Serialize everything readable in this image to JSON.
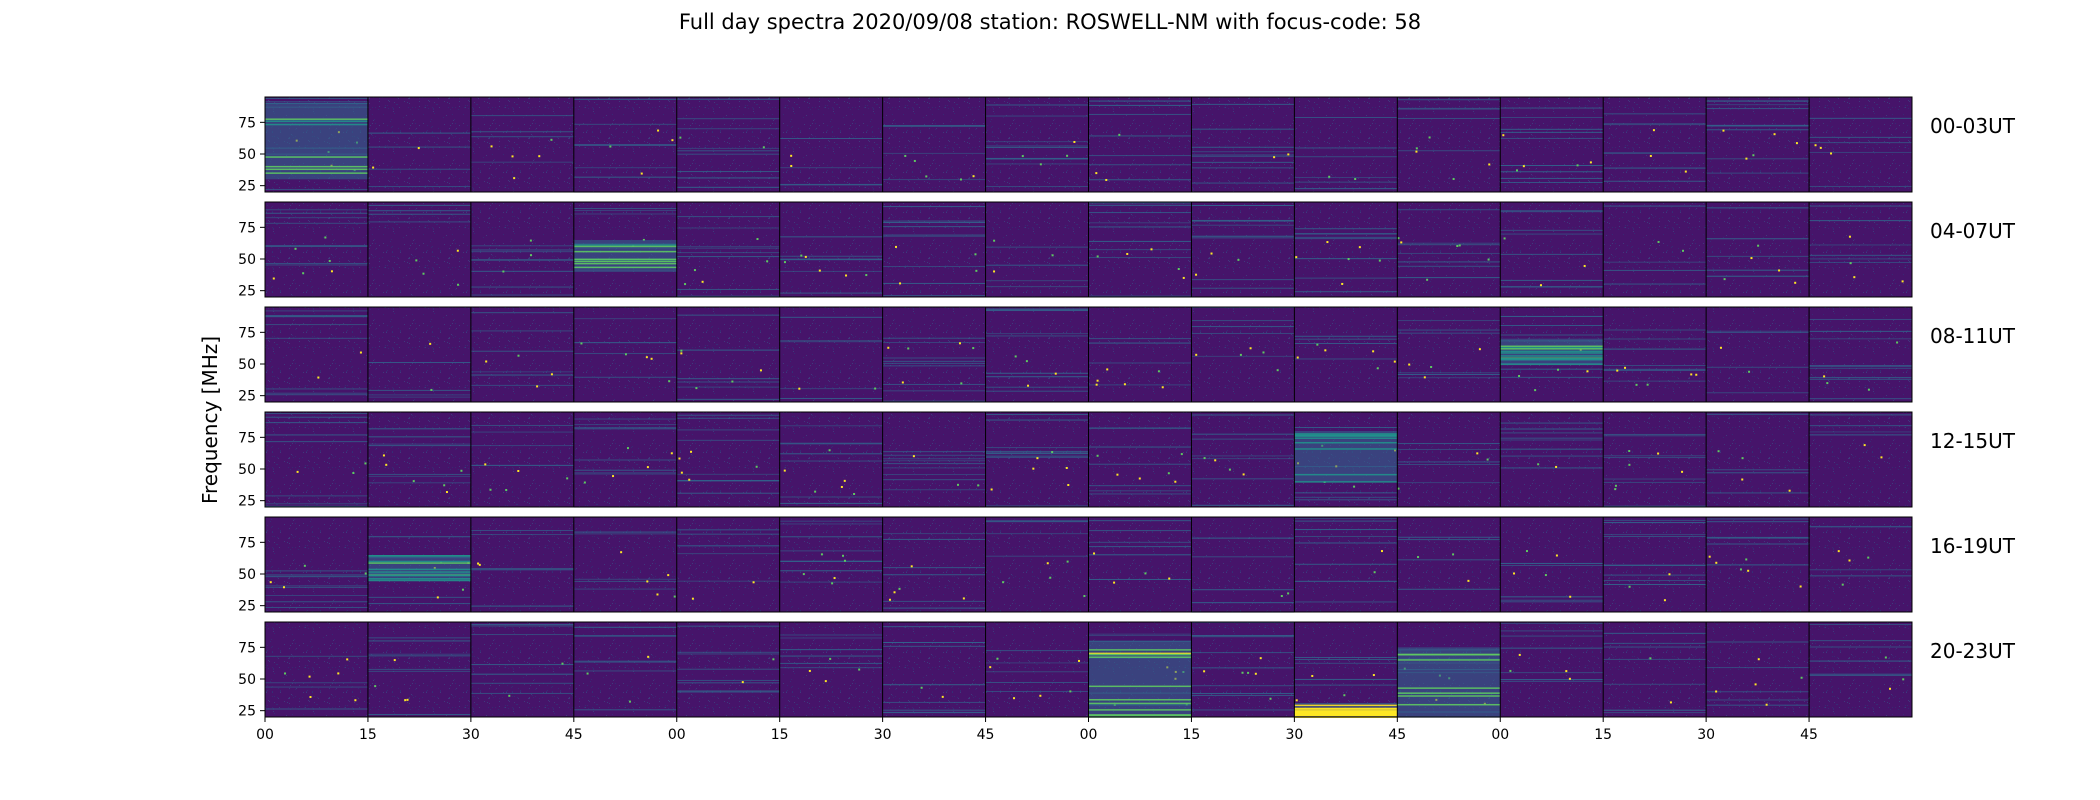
{
  "chart_data": {
    "type": "heatmap",
    "title": "Full day spectra 2020/09/08 station: ROSWELL-NM with focus-code: 58",
    "ylabel": "Frequency [MHz]",
    "xlabel": "",
    "rows": [
      "00-03UT",
      "04-07UT",
      "08-11UT",
      "12-15UT",
      "16-19UT",
      "20-23UT"
    ],
    "panels_per_row": 16,
    "minutes_per_panel": 15,
    "x_tick_labels": [
      "00",
      "15",
      "30",
      "45",
      "00",
      "15",
      "30",
      "45",
      "00",
      "15",
      "30",
      "45",
      "00",
      "15",
      "30",
      "45"
    ],
    "y_ticks": [
      25,
      50,
      75
    ],
    "ylim": [
      20,
      95
    ],
    "colormap": [
      "#440154",
      "#3b528b",
      "#21918c",
      "#5ec962",
      "#fde725"
    ],
    "background_color": "#46146a",
    "bright_bands": [
      {
        "row": 0,
        "panel": 0,
        "freq_range": [
          30,
          90
        ],
        "intensity": 0.45
      },
      {
        "row": 1,
        "panel": 3,
        "freq_range": [
          40,
          65
        ],
        "intensity": 0.5
      },
      {
        "row": 2,
        "panel": 12,
        "freq_range": [
          50,
          70
        ],
        "intensity": 0.5
      },
      {
        "row": 3,
        "panel": 10,
        "freq_range": [
          40,
          80
        ],
        "intensity": 0.35
      },
      {
        "row": 4,
        "panel": 1,
        "freq_range": [
          45,
          65
        ],
        "intensity": 0.4
      },
      {
        "row": 5,
        "panel": 8,
        "freq_range": [
          20,
          80
        ],
        "intensity": 0.6
      },
      {
        "row": 5,
        "panel": 10,
        "freq_range": [
          20,
          30
        ],
        "intensity": 0.9
      },
      {
        "row": 5,
        "panel": 11,
        "freq_range": [
          20,
          75
        ],
        "intensity": 0.55
      }
    ]
  }
}
